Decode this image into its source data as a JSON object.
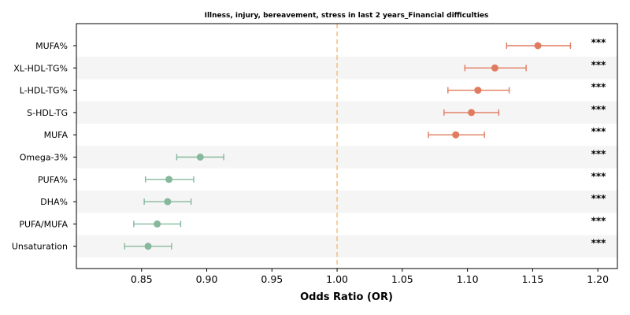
{
  "chart_data": {
    "type": "forest",
    "title": "Illness, injury, bereavement, stress in last 2 years_Financial difficulties",
    "xlabel": "Odds Ratio (OR)",
    "xlim": [
      0.8,
      1.215
    ],
    "xticks": [
      "0.85",
      "0.90",
      "0.95",
      "1.00",
      "1.05",
      "1.10",
      "1.15",
      "1.20"
    ],
    "reference_line": 1.0,
    "colors": {
      "positive": "#e07b5f",
      "negative": "#86b89c",
      "reference": "#f5c27a",
      "band": "#f5f5f5"
    },
    "rows": [
      {
        "label": "MUFA%",
        "or": 1.154,
        "lo": 1.13,
        "hi": 1.179,
        "sig": "***"
      },
      {
        "label": "XL-HDL-TG%",
        "or": 1.121,
        "lo": 1.098,
        "hi": 1.145,
        "sig": "***"
      },
      {
        "label": "L-HDL-TG%",
        "or": 1.108,
        "lo": 1.085,
        "hi": 1.132,
        "sig": "***"
      },
      {
        "label": "S-HDL-TG",
        "or": 1.103,
        "lo": 1.082,
        "hi": 1.124,
        "sig": "***"
      },
      {
        "label": "MUFA",
        "or": 1.091,
        "lo": 1.07,
        "hi": 1.113,
        "sig": "***"
      },
      {
        "label": "Omega-3%",
        "or": 0.895,
        "lo": 0.877,
        "hi": 0.913,
        "sig": "***"
      },
      {
        "label": "PUFA%",
        "or": 0.871,
        "lo": 0.853,
        "hi": 0.89,
        "sig": "***"
      },
      {
        "label": "DHA%",
        "or": 0.87,
        "lo": 0.852,
        "hi": 0.888,
        "sig": "***"
      },
      {
        "label": "PUFA/MUFA",
        "or": 0.862,
        "lo": 0.844,
        "hi": 0.88,
        "sig": "***"
      },
      {
        "label": "Unsaturation",
        "or": 0.855,
        "lo": 0.837,
        "hi": 0.873,
        "sig": "***"
      }
    ]
  }
}
